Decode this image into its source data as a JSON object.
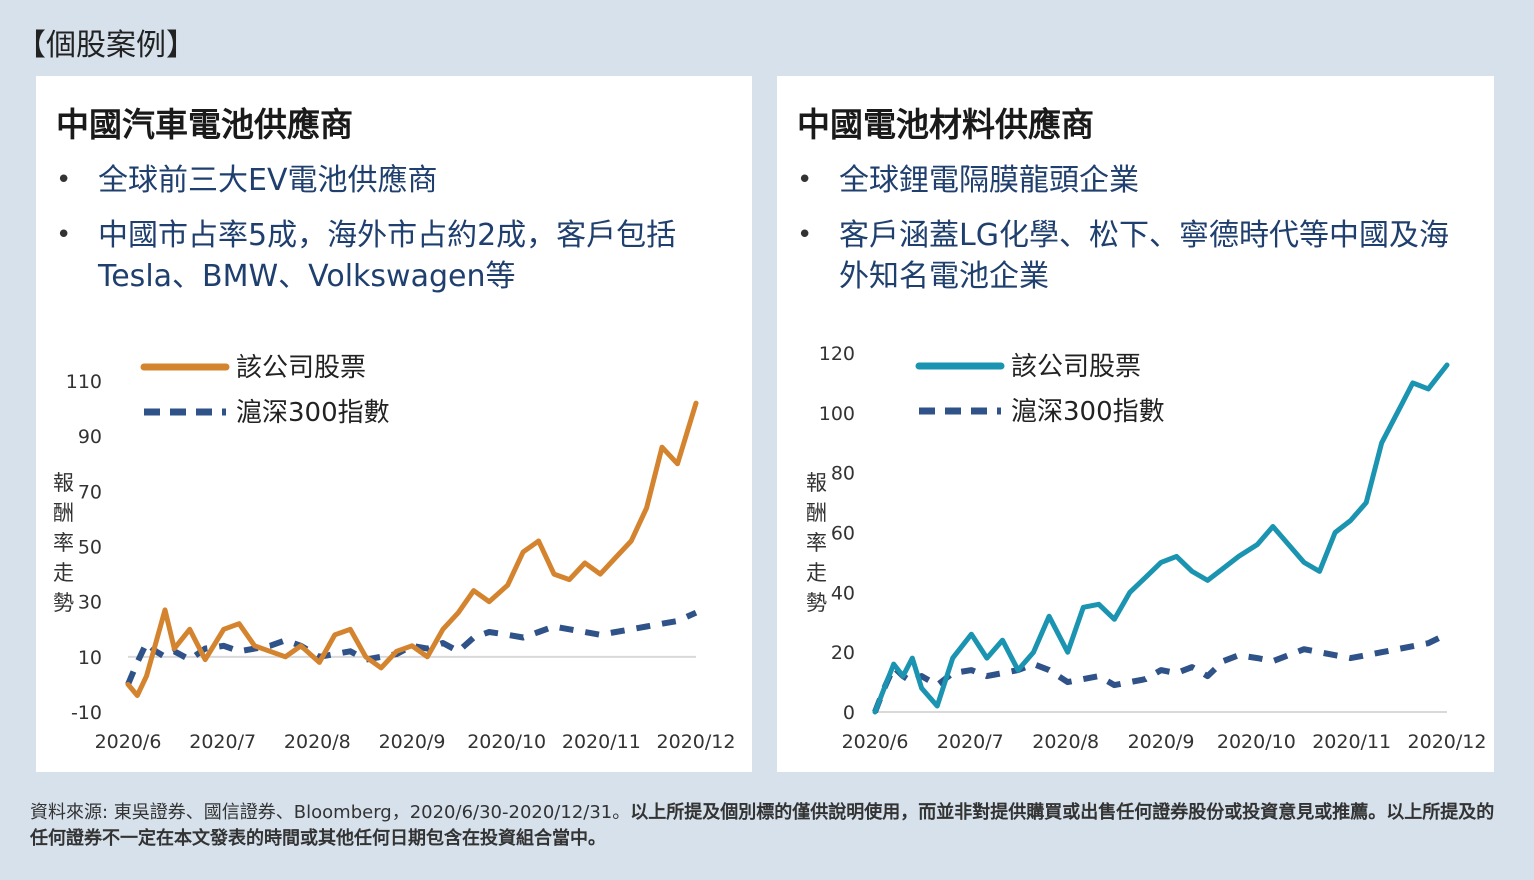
{
  "header": {
    "title": "【個股案例】"
  },
  "panels": [
    {
      "title": "中國汽車電池供應商",
      "bullets": [
        "全球前三大EV電池供應商",
        "中國市占率5成，海外市占約2成，客戶包括Tesla、BMW、Volkswagen等"
      ]
    },
    {
      "title": "中國電池材料供應商",
      "bullets": [
        "全球鋰電隔膜龍頭企業",
        "客戶涵蓋LG化學、松下、寧德時代等中國及海外知名電池企業"
      ]
    }
  ],
  "colors": {
    "orange": "#d4842e",
    "teal": "#1a94b0",
    "navy": "#2f5289",
    "background": "#d6e1ec"
  },
  "chart_data": [
    {
      "type": "line",
      "ylabel": "報酬率走勢",
      "ylim": [
        -10,
        110
      ],
      "yticks": [
        -10,
        10,
        30,
        50,
        70,
        90,
        110
      ],
      "xticklabels": [
        "2020/6",
        "2020/7",
        "2020/8",
        "2020/9",
        "2020/10",
        "2020/11",
        "2020/12"
      ],
      "legend_position": "top-left",
      "series": [
        {
          "name": "該公司股票",
          "style": "solid",
          "color": "#d4842e",
          "x": [
            "2020/6/30",
            "2020/7/3",
            "2020/7/6",
            "2020/7/9",
            "2020/7/12",
            "2020/7/15",
            "2020/7/20",
            "2020/7/25",
            "2020/7/31",
            "2020/8/5",
            "2020/8/10",
            "2020/8/15",
            "2020/8/20",
            "2020/8/25",
            "2020/8/31",
            "2020/9/5",
            "2020/9/10",
            "2020/9/15",
            "2020/9/20",
            "2020/9/25",
            "2020/9/30",
            "2020/10/5",
            "2020/10/10",
            "2020/10/15",
            "2020/10/20",
            "2020/10/25",
            "2020/10/31",
            "2020/11/5",
            "2020/11/10",
            "2020/11/15",
            "2020/11/20",
            "2020/11/25",
            "2020/11/30",
            "2020/12/5",
            "2020/12/10",
            "2020/12/15",
            "2020/12/20",
            "2020/12/25",
            "2020/12/31"
          ],
          "values": [
            0,
            -4,
            3,
            15,
            27,
            13,
            20,
            9,
            20,
            22,
            14,
            12,
            10,
            14,
            8,
            18,
            20,
            10,
            6,
            12,
            14,
            10,
            20,
            26,
            34,
            30,
            36,
            48,
            52,
            40,
            38,
            44,
            40,
            46,
            52,
            64,
            86,
            80,
            102
          ]
        },
        {
          "name": "滬深300指數",
          "style": "dashed",
          "color": "#2f5289",
          "x": [
            "2020/6/30",
            "2020/7/3",
            "2020/7/6",
            "2020/7/9",
            "2020/7/12",
            "2020/7/15",
            "2020/7/20",
            "2020/7/25",
            "2020/7/31",
            "2020/8/5",
            "2020/8/10",
            "2020/8/15",
            "2020/8/20",
            "2020/8/25",
            "2020/8/31",
            "2020/9/5",
            "2020/9/10",
            "2020/9/15",
            "2020/9/20",
            "2020/9/25",
            "2020/9/30",
            "2020/10/5",
            "2020/10/10",
            "2020/10/15",
            "2020/10/20",
            "2020/10/25",
            "2020/10/31",
            "2020/11/5",
            "2020/11/10",
            "2020/11/15",
            "2020/11/20",
            "2020/11/25",
            "2020/11/30",
            "2020/12/5",
            "2020/12/10",
            "2020/12/15",
            "2020/12/20",
            "2020/12/25",
            "2020/12/31"
          ],
          "values": [
            0,
            8,
            15,
            12,
            10,
            12,
            9,
            13,
            14,
            12,
            13,
            14,
            16,
            14,
            10,
            11,
            12,
            9,
            10,
            11,
            14,
            13,
            15,
            12,
            17,
            19,
            18,
            17,
            19,
            21,
            20,
            19,
            18,
            19,
            20,
            21,
            22,
            23,
            26
          ]
        }
      ]
    },
    {
      "type": "line",
      "ylabel": "報酬率走勢",
      "ylim": [
        0,
        120
      ],
      "yticks": [
        0,
        20,
        40,
        60,
        80,
        100,
        120
      ],
      "xticklabels": [
        "2020/6",
        "2020/7",
        "2020/8",
        "2020/9",
        "2020/10",
        "2020/11",
        "2020/12"
      ],
      "legend_position": "top-left",
      "series": [
        {
          "name": "該公司股票",
          "style": "solid",
          "color": "#1a94b0",
          "x": [
            "2020/6/30",
            "2020/7/3",
            "2020/7/6",
            "2020/7/9",
            "2020/7/12",
            "2020/7/15",
            "2020/7/20",
            "2020/7/25",
            "2020/7/31",
            "2020/8/5",
            "2020/8/10",
            "2020/8/15",
            "2020/8/20",
            "2020/8/25",
            "2020/8/31",
            "2020/9/5",
            "2020/9/10",
            "2020/9/15",
            "2020/9/20",
            "2020/9/25",
            "2020/9/30",
            "2020/10/5",
            "2020/10/10",
            "2020/10/15",
            "2020/10/20",
            "2020/10/25",
            "2020/10/31",
            "2020/11/5",
            "2020/11/10",
            "2020/11/15",
            "2020/11/20",
            "2020/11/25",
            "2020/11/30",
            "2020/12/5",
            "2020/12/10",
            "2020/12/15",
            "2020/12/20",
            "2020/12/25",
            "2020/12/31"
          ],
          "values": [
            0,
            8,
            16,
            12,
            18,
            8,
            2,
            18,
            26,
            18,
            24,
            14,
            20,
            32,
            20,
            35,
            36,
            31,
            40,
            45,
            50,
            52,
            47,
            44,
            48,
            52,
            56,
            62,
            56,
            50,
            47,
            60,
            64,
            70,
            90,
            100,
            110,
            108,
            116
          ]
        },
        {
          "name": "滬深300指數",
          "style": "dashed",
          "color": "#2f5289",
          "x": [
            "2020/6/30",
            "2020/7/3",
            "2020/7/6",
            "2020/7/9",
            "2020/7/12",
            "2020/7/15",
            "2020/7/20",
            "2020/7/25",
            "2020/7/31",
            "2020/8/5",
            "2020/8/10",
            "2020/8/15",
            "2020/8/20",
            "2020/8/25",
            "2020/8/31",
            "2020/9/5",
            "2020/9/10",
            "2020/9/15",
            "2020/9/20",
            "2020/9/25",
            "2020/9/30",
            "2020/10/5",
            "2020/10/10",
            "2020/10/15",
            "2020/10/20",
            "2020/10/25",
            "2020/10/31",
            "2020/11/5",
            "2020/11/10",
            "2020/11/15",
            "2020/11/20",
            "2020/11/25",
            "2020/11/30",
            "2020/12/5",
            "2020/12/10",
            "2020/12/15",
            "2020/12/20",
            "2020/12/25",
            "2020/12/31"
          ],
          "values": [
            0,
            8,
            15,
            12,
            10,
            12,
            9,
            13,
            14,
            12,
            13,
            14,
            16,
            14,
            10,
            11,
            12,
            9,
            10,
            11,
            14,
            13,
            15,
            12,
            17,
            19,
            18,
            17,
            19,
            21,
            20,
            19,
            18,
            19,
            20,
            21,
            22,
            23,
            26
          ]
        }
      ]
    }
  ],
  "footer": {
    "source": "資料來源: 東吳證券、國信證券、Bloomberg，2020/6/30-2020/12/31。",
    "disclaimer": "以上所提及個別標的僅供說明使用，而並非對提供購買或出售任何證券股份或投資意見或推薦。以上所提及的任何證券不一定在本文發表的時間或其他任何日期包含在投資組合當中。"
  }
}
